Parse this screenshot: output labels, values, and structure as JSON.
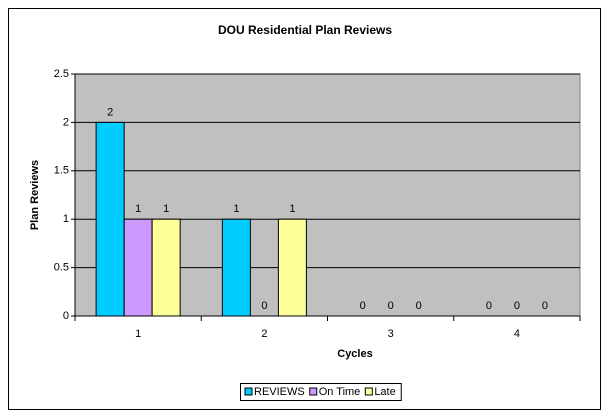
{
  "chart_data": {
    "type": "bar",
    "title": "DOU Residential Plan Reviews",
    "x_label": "Cycles",
    "y_label": "Plan Reviews",
    "categories": [
      "1",
      "2",
      "3",
      "4"
    ],
    "series": [
      {
        "name": "REVIEWS",
        "color": "#00ccff",
        "values": [
          2,
          1,
          0,
          0
        ]
      },
      {
        "name": "On Time",
        "color": "#cc99ff",
        "values": [
          1,
          0,
          0,
          0
        ]
      },
      {
        "name": "Late",
        "color": "#ffff99",
        "values": [
          1,
          1,
          0,
          0
        ]
      }
    ],
    "ylim": [
      0,
      2.5
    ],
    "yticks": [
      0,
      0.5,
      1,
      1.5,
      2,
      2.5
    ],
    "grid": true,
    "legend": "bottom"
  }
}
